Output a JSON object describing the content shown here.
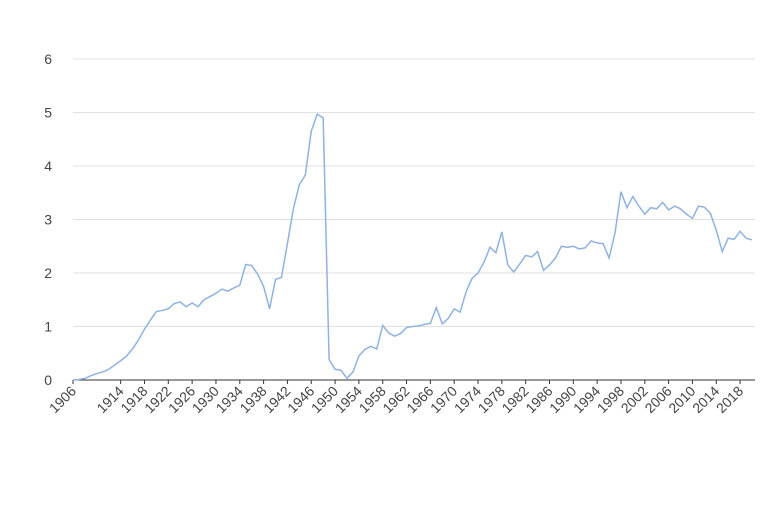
{
  "chart_data": {
    "type": "line",
    "x": [
      1906,
      1907,
      1908,
      1909,
      1910,
      1911,
      1912,
      1913,
      1914,
      1915,
      1916,
      1917,
      1918,
      1919,
      1920,
      1921,
      1922,
      1923,
      1924,
      1925,
      1926,
      1927,
      1928,
      1929,
      1930,
      1931,
      1932,
      1933,
      1934,
      1935,
      1936,
      1937,
      1938,
      1939,
      1940,
      1941,
      1942,
      1943,
      1944,
      1945,
      1946,
      1947,
      1948,
      1949,
      1950,
      1951,
      1952,
      1953,
      1954,
      1955,
      1956,
      1957,
      1958,
      1959,
      1960,
      1961,
      1962,
      1963,
      1964,
      1965,
      1966,
      1967,
      1968,
      1969,
      1970,
      1971,
      1972,
      1973,
      1974,
      1975,
      1976,
      1977,
      1978,
      1979,
      1980,
      1981,
      1982,
      1983,
      1984,
      1985,
      1986,
      1987,
      1988,
      1989,
      1990,
      1991,
      1992,
      1993,
      1994,
      1995,
      1996,
      1997,
      1998,
      1999,
      2000,
      2001,
      2002,
      2003,
      2004,
      2005,
      2006,
      2007,
      2008,
      2009,
      2010,
      2011,
      2012,
      2013,
      2014,
      2015,
      2016,
      2017,
      2018,
      2019,
      2020
    ],
    "series": [
      {
        "color": "#8fb2e0",
        "values": [
          0,
          0.01,
          0.03,
          0.08,
          0.12,
          0.15,
          0.2,
          0.28,
          0.36,
          0.45,
          0.58,
          0.75,
          0.95,
          1.12,
          1.28,
          1.3,
          1.33,
          1.43,
          1.46,
          1.37,
          1.44,
          1.37,
          1.5,
          1.56,
          1.62,
          1.7,
          1.66,
          1.72,
          1.77,
          2.16,
          2.14,
          1.98,
          1.75,
          1.33,
          1.88,
          1.92,
          2.55,
          3.2,
          3.65,
          3.83,
          4.65,
          4.97,
          4.9,
          0.38,
          0.2,
          0.18,
          0.03,
          0.15,
          0.45,
          0.57,
          0.63,
          0.58,
          1.02,
          0.88,
          0.82,
          0.87,
          0.98,
          1.0,
          1.01,
          1.04,
          1.06,
          1.35,
          1.05,
          1.15,
          1.33,
          1.27,
          1.65,
          1.9,
          2.0,
          2.2,
          2.48,
          2.38,
          2.77,
          2.15,
          2.02,
          2.17,
          2.33,
          2.3,
          2.4,
          2.05,
          2.15,
          2.28,
          2.5,
          2.48,
          2.5,
          2.45,
          2.47,
          2.6,
          2.56,
          2.55,
          2.28,
          2.75,
          3.52,
          3.22,
          3.43,
          3.25,
          3.1,
          3.22,
          3.2,
          3.32,
          3.18,
          3.25,
          3.2,
          3.1,
          3.02,
          3.25,
          3.23,
          3.12,
          2.8,
          2.4,
          2.65,
          2.63,
          2.78,
          2.65,
          2.62
        ]
      }
    ],
    "xlim": [
      1906,
      2020
    ],
    "xticks": [
      1906,
      1914,
      1918,
      1922,
      1926,
      1930,
      1934,
      1938,
      1942,
      1946,
      1950,
      1954,
      1958,
      1962,
      1966,
      1970,
      1974,
      1978,
      1982,
      1986,
      1990,
      1994,
      1998,
      2002,
      2006,
      2010,
      2014,
      2018
    ],
    "ylim": [
      0,
      6
    ],
    "yticks": [
      0,
      1,
      2,
      3,
      4,
      5,
      6
    ],
    "grid": true
  }
}
